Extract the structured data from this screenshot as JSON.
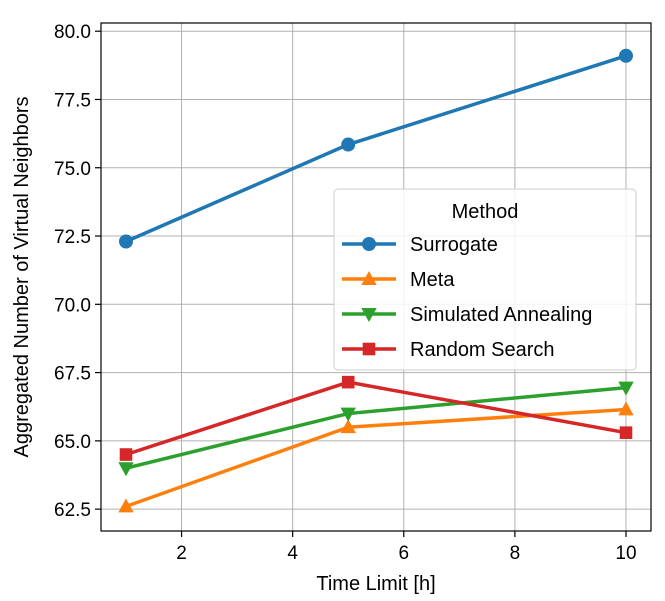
{
  "chart_data": {
    "type": "line",
    "xlabel": "Time Limit [h]",
    "ylabel": "Aggregated Number of Virtual Neighbors",
    "xlim": [
      0.55,
      10.45
    ],
    "ylim": [
      61.7,
      80.3
    ],
    "xticks": [
      2,
      4,
      6,
      8,
      10
    ],
    "yticks": [
      62.5,
      65.0,
      67.5,
      70.0,
      72.5,
      75.0,
      77.5,
      80.0
    ],
    "ytick_labels": [
      "62.5",
      "65.0",
      "67.5",
      "70.0",
      "72.5",
      "75.0",
      "77.5",
      "80.0"
    ],
    "grid": true,
    "x": [
      1,
      5,
      10
    ],
    "legend": {
      "title": "Method",
      "position": "center-right"
    },
    "series": [
      {
        "name": "Surrogate",
        "values": [
          72.3,
          75.85,
          79.1
        ],
        "color": "#1f77b4",
        "marker": "circle"
      },
      {
        "name": "Meta",
        "values": [
          62.6,
          65.5,
          66.15
        ],
        "color": "#ff7f0e",
        "marker": "triangle-up"
      },
      {
        "name": "Simulated Annealing",
        "values": [
          64.0,
          66.0,
          66.95
        ],
        "color": "#2ca02c",
        "marker": "triangle-down"
      },
      {
        "name": "Random Search",
        "values": [
          64.5,
          67.15,
          65.3
        ],
        "color": "#d62728",
        "marker": "square"
      }
    ]
  }
}
